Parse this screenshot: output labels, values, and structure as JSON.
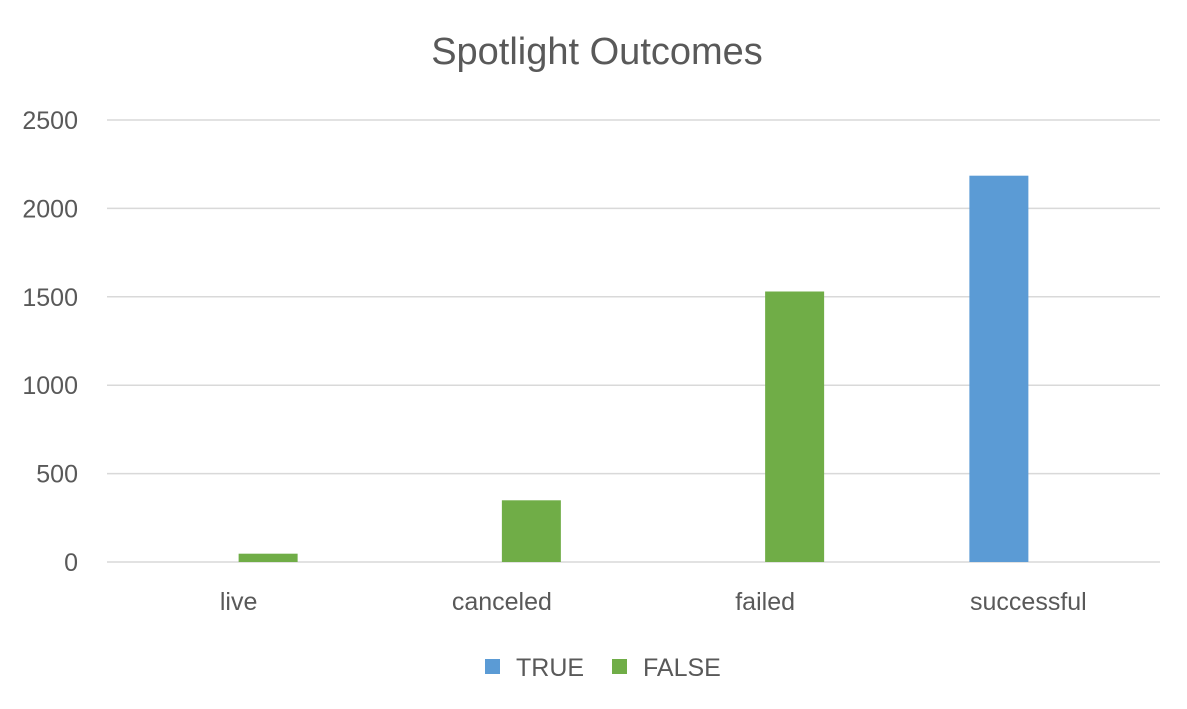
{
  "chart_data": {
    "type": "bar",
    "title": "Spotlight Outcomes",
    "xlabel": "",
    "ylabel": "",
    "categories": [
      "live",
      "canceled",
      "failed",
      "successful"
    ],
    "series": [
      {
        "name": "TRUE",
        "color": "#5b9bd5",
        "values": [
          0,
          0,
          0,
          2185
        ]
      },
      {
        "name": "FALSE",
        "color": "#70ad47",
        "values": [
          47,
          349,
          1530,
          0
        ]
      }
    ],
    "ylim": [
      0,
      2500
    ],
    "yticks": [
      "0",
      "500",
      "1000",
      "1500",
      "2000",
      "2500"
    ],
    "grid": true,
    "legend_position": "bottom"
  }
}
